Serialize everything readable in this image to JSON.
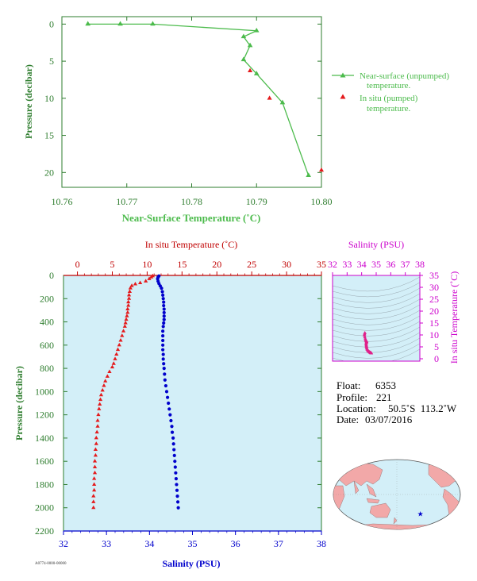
{
  "colors": {
    "green": "#4cbb4c",
    "axis_green": "#2e7d2e",
    "temp_red": "#e41a1c",
    "temp_axis": "#c00000",
    "salinity_blue": "#0000cc",
    "salinity_magenta": "#cc00cc",
    "panel_bg": "#d3eff8",
    "map_land": "#f2a8a8",
    "map_sea": "#d3eff8"
  },
  "info": {
    "float_label": "Float:",
    "float_value": "6353",
    "profile_label": "Profile:",
    "profile_value": "221",
    "location_label": "Location:",
    "location_value": "50.5˚S  113.2˚W",
    "date_label": "Date:",
    "date_value": "03/07/2016"
  },
  "footer_code": "A0774-0000-00000",
  "chart_data": [
    {
      "type": "line",
      "id": "near_surface",
      "xlabel": "Near-Surface Temperature (˚C)",
      "ylabel": "Pressure (decibar)",
      "xlim": [
        10.76,
        10.8
      ],
      "ylim": [
        22,
        -1
      ],
      "xticks": [
        "10.76",
        "10.77",
        "10.78",
        "10.79",
        "10.80"
      ],
      "xtick_values": [
        10.76,
        10.77,
        10.78,
        10.79,
        10.8
      ],
      "yticks": [
        "0",
        "5",
        "10",
        "15",
        "20"
      ],
      "ytick_values": [
        0,
        5,
        10,
        15,
        20
      ],
      "legend": [
        {
          "label_line1": "Near-surface (unpumped)",
          "label_line2": "temperature."
        },
        {
          "label_line1": "In situ (pumped)",
          "label_line2": "temperature."
        }
      ],
      "series": [
        {
          "name": "Near-surface (unpumped) temperature.",
          "marker": "triangle-line",
          "points": [
            [
              10.764,
              0.0
            ],
            [
              10.769,
              0.0
            ],
            [
              10.774,
              0.0
            ],
            [
              10.79,
              0.9
            ],
            [
              10.788,
              1.7
            ],
            [
              10.789,
              2.9
            ],
            [
              10.788,
              4.8
            ],
            [
              10.79,
              6.7
            ],
            [
              10.794,
              10.6
            ],
            [
              10.798,
              20.4
            ]
          ]
        },
        {
          "name": "In situ (pumped) temperature.",
          "marker": "triangle",
          "points": [
            [
              10.789,
              6.3
            ],
            [
              10.792,
              10.0
            ],
            [
              10.8,
              19.7
            ]
          ]
        }
      ]
    },
    {
      "type": "scatter",
      "id": "profile",
      "top_xlabel": "In situ Temperature (˚C)",
      "bottom_xlabel": "Salinity (PSU)",
      "ylabel": "Pressure (decibar)",
      "temp_xlim": [
        -2,
        35
      ],
      "sal_xlim": [
        32,
        38
      ],
      "ylim": [
        2200,
        0
      ],
      "temp_ticks": [
        "0",
        "5",
        "10",
        "15",
        "20",
        "25",
        "30",
        "35"
      ],
      "temp_tick_values": [
        0,
        5,
        10,
        15,
        20,
        25,
        30,
        35
      ],
      "sal_ticks": [
        "32",
        "33",
        "34",
        "35",
        "36",
        "37",
        "38"
      ],
      "sal_tick_values": [
        32,
        33,
        34,
        35,
        36,
        37,
        38
      ],
      "yticks": [
        "0",
        "200",
        "400",
        "600",
        "800",
        "1000",
        "1200",
        "1400",
        "1600",
        "1800",
        "2000",
        "2200"
      ],
      "ytick_values": [
        0,
        200,
        400,
        600,
        800,
        1000,
        1200,
        1400,
        1600,
        1800,
        2000,
        2200
      ],
      "temperature": {
        "name": "In situ Temperature",
        "points": [
          [
            10.8,
            5
          ],
          [
            10.6,
            15
          ],
          [
            10.3,
            30
          ],
          [
            9.8,
            50
          ],
          [
            9.0,
            65
          ],
          [
            8.3,
            75
          ],
          [
            7.8,
            90
          ],
          [
            7.6,
            110
          ],
          [
            7.5,
            140
          ],
          [
            7.4,
            170
          ],
          [
            7.4,
            200
          ],
          [
            7.3,
            230
          ],
          [
            7.3,
            260
          ],
          [
            7.2,
            290
          ],
          [
            7.2,
            320
          ],
          [
            7.1,
            350
          ],
          [
            7.0,
            380
          ],
          [
            6.9,
            410
          ],
          [
            6.8,
            440
          ],
          [
            6.6,
            480
          ],
          [
            6.4,
            520
          ],
          [
            6.2,
            560
          ],
          [
            6.0,
            600
          ],
          [
            5.8,
            640
          ],
          [
            5.6,
            680
          ],
          [
            5.4,
            720
          ],
          [
            5.2,
            760
          ],
          [
            5.0,
            790
          ],
          [
            4.6,
            830
          ],
          [
            4.3,
            870
          ],
          [
            4.0,
            910
          ],
          [
            3.8,
            950
          ],
          [
            3.6,
            990
          ],
          [
            3.4,
            1030
          ],
          [
            3.3,
            1070
          ],
          [
            3.2,
            1110
          ],
          [
            3.1,
            1150
          ],
          [
            3.0,
            1200
          ],
          [
            2.9,
            1250
          ],
          [
            2.9,
            1300
          ],
          [
            2.8,
            1350
          ],
          [
            2.7,
            1400
          ],
          [
            2.7,
            1450
          ],
          [
            2.6,
            1500
          ],
          [
            2.6,
            1550
          ],
          [
            2.5,
            1600
          ],
          [
            2.5,
            1650
          ],
          [
            2.5,
            1700
          ],
          [
            2.4,
            1750
          ],
          [
            2.4,
            1800
          ],
          [
            2.4,
            1850
          ],
          [
            2.3,
            1900
          ],
          [
            2.3,
            1950
          ],
          [
            2.3,
            2000
          ]
        ]
      },
      "salinity": {
        "name": "Salinity",
        "points": [
          [
            34.22,
            5
          ],
          [
            34.2,
            15
          ],
          [
            34.19,
            30
          ],
          [
            34.2,
            50
          ],
          [
            34.22,
            70
          ],
          [
            34.25,
            90
          ],
          [
            34.28,
            110
          ],
          [
            34.3,
            140
          ],
          [
            34.31,
            170
          ],
          [
            34.32,
            200
          ],
          [
            34.33,
            230
          ],
          [
            34.33,
            260
          ],
          [
            34.34,
            290
          ],
          [
            34.34,
            320
          ],
          [
            34.34,
            350
          ],
          [
            34.34,
            380
          ],
          [
            34.33,
            410
          ],
          [
            34.32,
            440
          ],
          [
            34.31,
            480
          ],
          [
            34.31,
            520
          ],
          [
            34.31,
            560
          ],
          [
            34.31,
            600
          ],
          [
            34.31,
            640
          ],
          [
            34.32,
            680
          ],
          [
            34.32,
            720
          ],
          [
            34.33,
            760
          ],
          [
            34.34,
            800
          ],
          [
            34.35,
            850
          ],
          [
            34.36,
            900
          ],
          [
            34.38,
            950
          ],
          [
            34.4,
            1000
          ],
          [
            34.42,
            1050
          ],
          [
            34.44,
            1100
          ],
          [
            34.46,
            1150
          ],
          [
            34.48,
            1200
          ],
          [
            34.5,
            1250
          ],
          [
            34.52,
            1300
          ],
          [
            34.53,
            1350
          ],
          [
            34.55,
            1400
          ],
          [
            34.56,
            1450
          ],
          [
            34.57,
            1500
          ],
          [
            34.58,
            1550
          ],
          [
            34.59,
            1600
          ],
          [
            34.6,
            1650
          ],
          [
            34.61,
            1700
          ],
          [
            34.62,
            1750
          ],
          [
            34.63,
            1800
          ],
          [
            34.64,
            1850
          ],
          [
            34.65,
            1900
          ],
          [
            34.66,
            1950
          ],
          [
            34.67,
            2000
          ]
        ]
      }
    },
    {
      "type": "scatter",
      "id": "ts_diagram",
      "xlabel": "Salinity (PSU)",
      "ylabel": "In situ Temperature (˚C)",
      "xlim": [
        32,
        38
      ],
      "ylim": [
        -1,
        35
      ],
      "xticks": [
        "32",
        "33",
        "34",
        "35",
        "36",
        "37",
        "38"
      ],
      "xtick_values": [
        32,
        33,
        34,
        35,
        36,
        37,
        38
      ],
      "yticks": [
        "0",
        "5",
        "10",
        "15",
        "20",
        "25",
        "30",
        "35"
      ],
      "ytick_values": [
        0,
        5,
        10,
        15,
        20,
        25,
        30,
        35
      ],
      "points": [
        [
          34.22,
          10.8
        ],
        [
          34.2,
          10.3
        ],
        [
          34.19,
          9.8
        ],
        [
          34.22,
          9.0
        ],
        [
          34.25,
          8.3
        ],
        [
          34.28,
          7.8
        ],
        [
          34.3,
          7.6
        ],
        [
          34.32,
          7.4
        ],
        [
          34.33,
          7.3
        ],
        [
          34.34,
          7.2
        ],
        [
          34.34,
          7.0
        ],
        [
          34.33,
          6.8
        ],
        [
          34.31,
          6.4
        ],
        [
          34.31,
          6.0
        ],
        [
          34.32,
          5.6
        ],
        [
          34.33,
          5.2
        ],
        [
          34.34,
          4.8
        ],
        [
          34.35,
          4.3
        ],
        [
          34.38,
          3.8
        ],
        [
          34.42,
          3.4
        ],
        [
          34.46,
          3.2
        ],
        [
          34.5,
          3.0
        ],
        [
          34.53,
          2.8
        ],
        [
          34.56,
          2.7
        ],
        [
          34.58,
          2.6
        ],
        [
          34.6,
          2.5
        ],
        [
          34.62,
          2.4
        ],
        [
          34.64,
          2.4
        ],
        [
          34.66,
          2.3
        ],
        [
          34.67,
          2.3
        ]
      ]
    }
  ],
  "map": {
    "float_marker": "star-icon",
    "float_lat": -50.5,
    "float_lon": -113.2
  }
}
